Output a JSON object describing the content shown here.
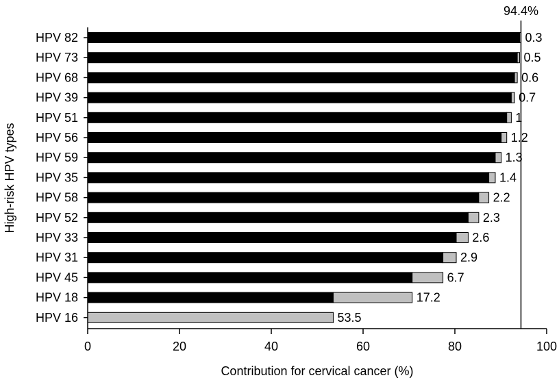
{
  "chart_data": {
    "type": "bar",
    "orientation": "horizontal",
    "stacked": true,
    "xlabel": "Contribution for cervical cancer (%)",
    "ylabel": "High-risk HPV types",
    "xlim": [
      0,
      100
    ],
    "xticks": [
      0,
      20,
      40,
      60,
      80,
      100
    ],
    "grid": false,
    "legend": "none",
    "reference_line": {
      "value": 94.4,
      "label": "94.4%"
    },
    "categories": [
      "HPV 82",
      "HPV 73",
      "HPV 68",
      "HPV 39",
      "HPV 51",
      "HPV 56",
      "HPV 59",
      "HPV 35",
      "HPV 58",
      "HPV 52",
      "HPV 33",
      "HPV 31",
      "HPV 45",
      "HPV 18",
      "HPV 16"
    ],
    "series": [
      {
        "role": "cumulative",
        "color": "#000000",
        "values": [
          94.1,
          93.6,
          93.0,
          92.3,
          91.3,
          90.1,
          88.8,
          87.4,
          85.2,
          82.9,
          80.3,
          77.4,
          70.7,
          53.5,
          0
        ]
      },
      {
        "role": "contribution",
        "color": "#c0c0c0",
        "values": [
          0.3,
          0.5,
          0.6,
          0.7,
          1,
          1.2,
          1.3,
          1.4,
          2.2,
          2.3,
          2.6,
          2.9,
          6.7,
          17.2,
          53.5
        ]
      }
    ],
    "data_labels": [
      "0.3",
      "0.5",
      "0.6",
      "0.7",
      "1",
      "1.2",
      "1.3",
      "1.4",
      "2.2",
      "2.3",
      "2.6",
      "2.9",
      "6.7",
      "17.2",
      "53.5"
    ]
  }
}
